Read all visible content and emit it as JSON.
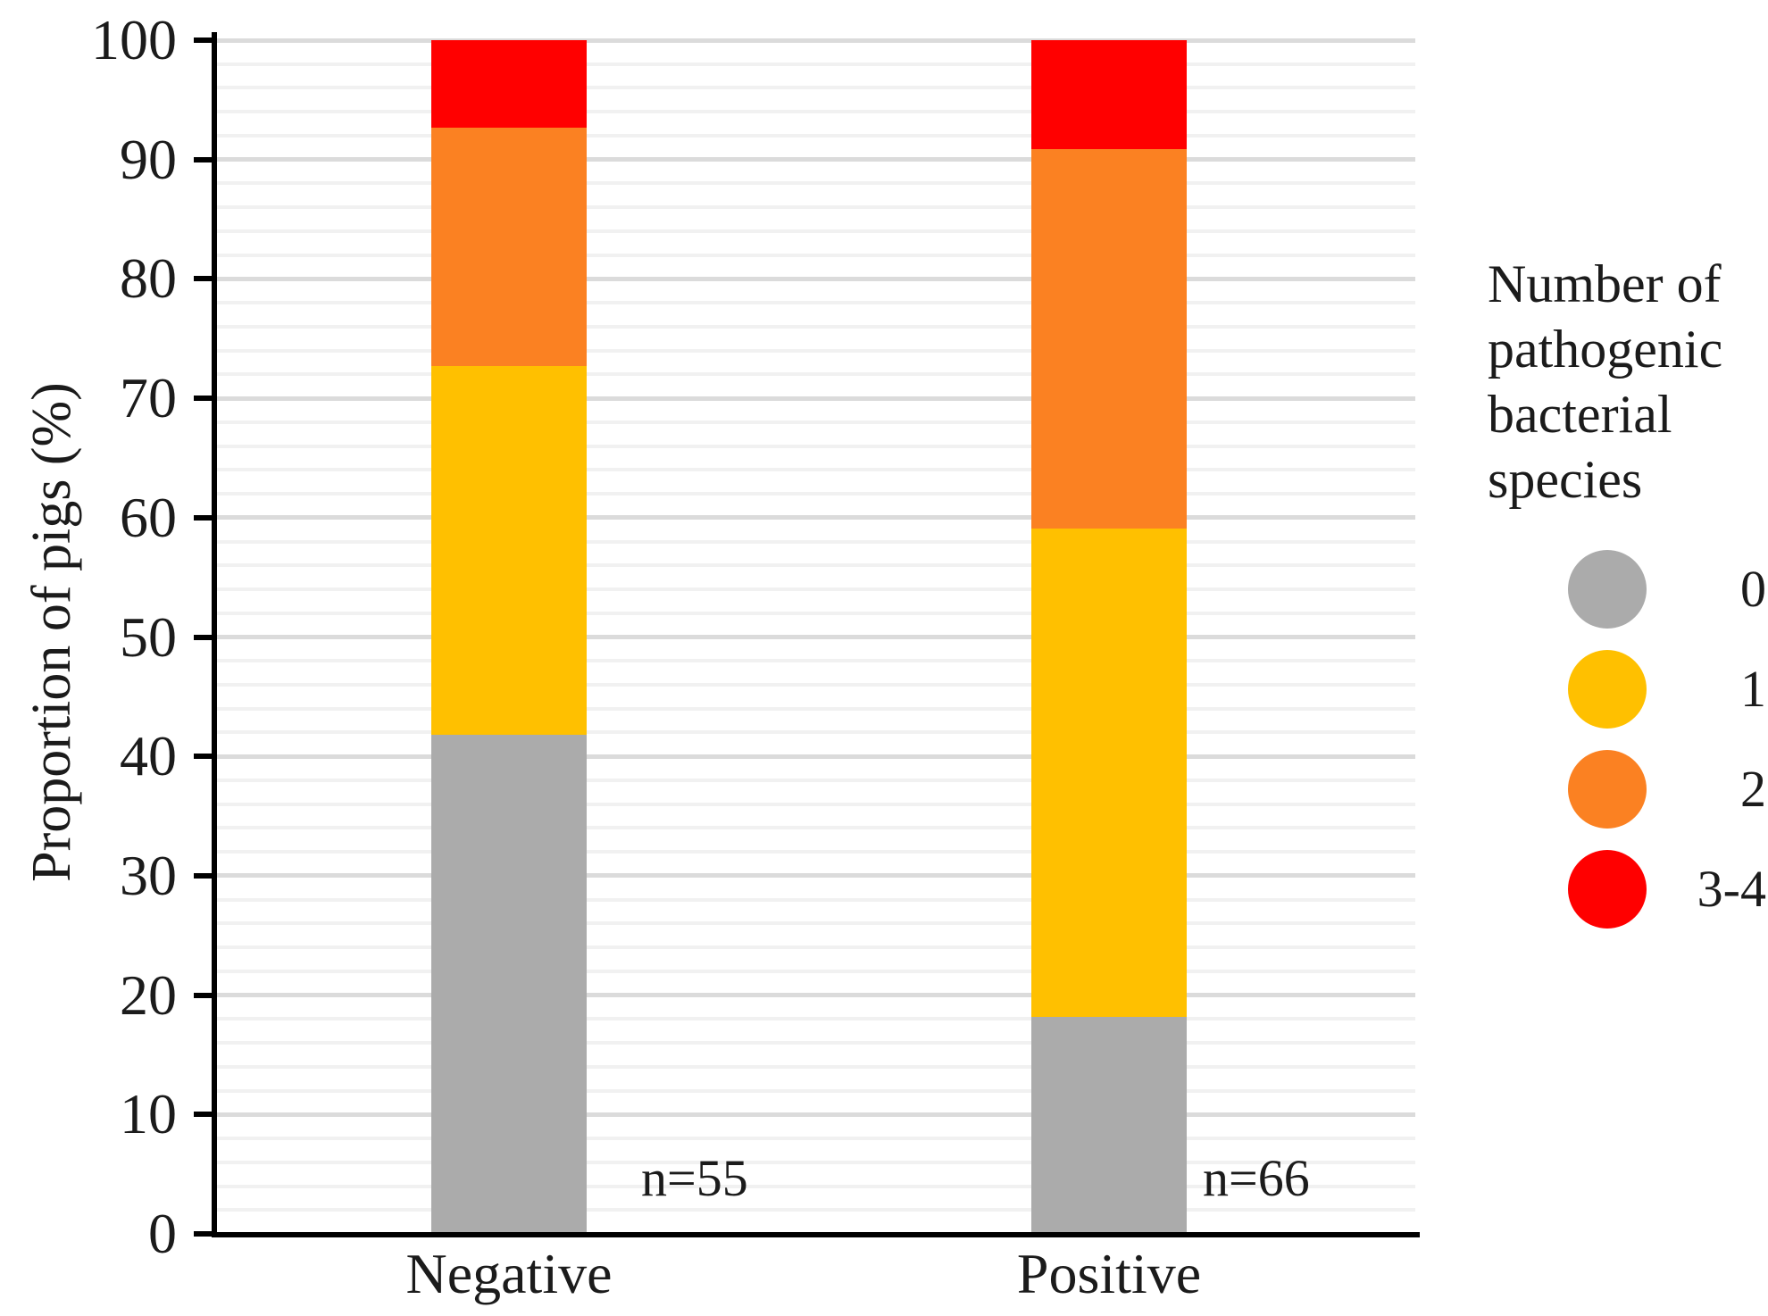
{
  "chart_data": {
    "type": "bar",
    "stacked": true,
    "categories": [
      "Negative",
      "Positive"
    ],
    "series": [
      {
        "name": "0",
        "color": "#ABABAB",
        "values": [
          41.8,
          18.2
        ]
      },
      {
        "name": "1",
        "color": "#FFC000",
        "values": [
          30.9,
          40.9
        ]
      },
      {
        "name": "2",
        "color": "#FB8122",
        "values": [
          20.0,
          31.8
        ]
      },
      {
        "name": "3-4",
        "color": "#FF0000",
        "values": [
          7.3,
          9.1
        ]
      }
    ],
    "bar_annotations": [
      "n=55",
      "n=66"
    ],
    "xlabel": "",
    "ylabel": "Proportion of pigs (%)",
    "ylim": [
      0,
      100
    ],
    "yticks": [
      0,
      10,
      20,
      30,
      40,
      50,
      60,
      70,
      80,
      90,
      100
    ],
    "minor_grid_step": 2,
    "grid": true,
    "legend_title": "Number of pathogenic bacterial species",
    "legend_position": "right"
  },
  "legend": {
    "title_lines": [
      "Number of",
      "pathogenic",
      "bacterial",
      "species"
    ]
  }
}
